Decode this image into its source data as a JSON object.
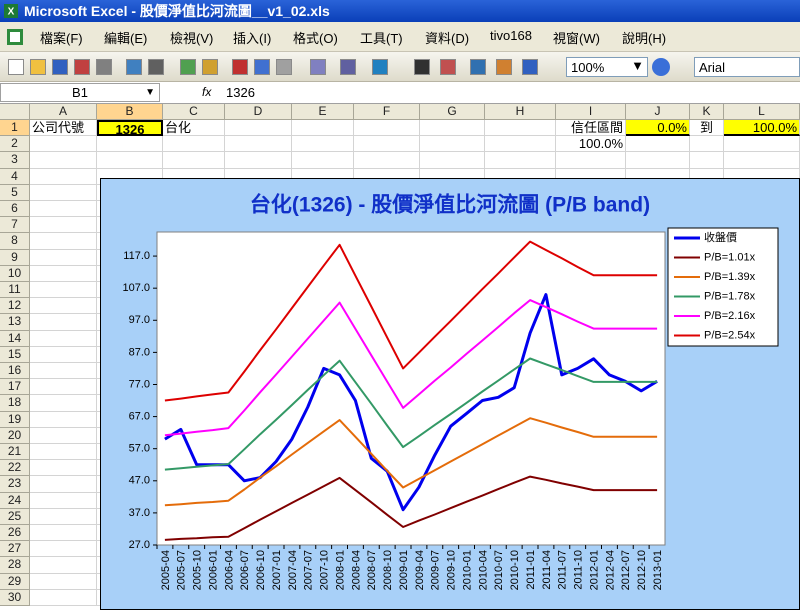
{
  "window": {
    "title": "Microsoft Excel - 股價淨值比河流圖__v1_02.xls"
  },
  "menu": [
    "檔案(F)",
    "編輯(E)",
    "檢視(V)",
    "插入(I)",
    "格式(O)",
    "工具(T)",
    "資料(D)",
    "tivo168",
    "視窗(W)",
    "說明(H)"
  ],
  "toolbar": {
    "zoom": "100%",
    "font": "Arial"
  },
  "formula_bar": {
    "name_box": "B1",
    "fx_label": "fx",
    "formula": "1326"
  },
  "sheet": {
    "columns": [
      "A",
      "B",
      "C",
      "D",
      "E",
      "F",
      "G",
      "H",
      "I",
      "J",
      "K",
      "L"
    ],
    "rows": [
      "1",
      "2",
      "3",
      "4",
      "5",
      "6",
      "7",
      "8",
      "9",
      "10",
      "11",
      "12",
      "13",
      "14",
      "15",
      "16",
      "17",
      "18",
      "19",
      "20",
      "21",
      "22",
      "23",
      "24",
      "25",
      "26",
      "27",
      "28",
      "29",
      "30"
    ],
    "cells": {
      "A1": "公司代號",
      "B1": "1326",
      "C1": "台化",
      "I1": "信任區間",
      "J1": "0.0%",
      "K1": "到",
      "L1": "100.0%",
      "I2": "100.0%"
    }
  },
  "chart_data": {
    "type": "line",
    "title": "台化(1326)  - 股價淨值比河流圖 (P/B band)",
    "categories": [
      "2005-04",
      "2005-07",
      "2005-10",
      "2006-01",
      "2006-04",
      "2006-07",
      "2006-10",
      "2007-01",
      "2007-04",
      "2007-07",
      "2007-10",
      "2008-01",
      "2008-04",
      "2008-07",
      "2008-10",
      "2009-01",
      "2009-04",
      "2009-07",
      "2009-10",
      "2010-01",
      "2010-04",
      "2010-07",
      "2010-10",
      "2011-01",
      "2011-04",
      "2011-07",
      "2011-10",
      "2012-01",
      "2012-04",
      "2012-07",
      "2012-10",
      "2013-01"
    ],
    "ylim": [
      27,
      124.5
    ],
    "yticks": [
      {
        "value": 27,
        "label": "27.0"
      },
      {
        "value": 37,
        "label": "37.0"
      },
      {
        "value": 47,
        "label": "47.0"
      },
      {
        "value": 57,
        "label": "57.0"
      },
      {
        "value": 67,
        "label": "67.0"
      },
      {
        "value": 77,
        "label": "77.0"
      },
      {
        "value": 87,
        "label": "87.0"
      },
      {
        "value": 97,
        "label": "97.0"
      },
      {
        "value": 107,
        "label": "107.0"
      },
      {
        "value": 117,
        "label": "117.0"
      }
    ],
    "legend": "right",
    "series": [
      {
        "name": "收盤價",
        "color": "#0000ee",
        "values": [
          60,
          63,
          52,
          52,
          52,
          47,
          48,
          53,
          60,
          70,
          82,
          80,
          72,
          54,
          50,
          38,
          45,
          55,
          64,
          68,
          72,
          73,
          76,
          93,
          105,
          80,
          82,
          85,
          80,
          78,
          75,
          78
        ]
      },
      {
        "name": "P/B=1.01x",
        "color": "#800000",
        "values": [
          28.6,
          28.9,
          29.1,
          29.4,
          29.6,
          32.2,
          34.9,
          37.5,
          40.1,
          42.7,
          45.3,
          47.9,
          44.1,
          40.3,
          36.4,
          32.6,
          34.6,
          36.5,
          38.5,
          40.5,
          42.4,
          44.4,
          46.4,
          48.3,
          47.3,
          46.2,
          45.2,
          44.1,
          44.1,
          44.1,
          44.1,
          44.1
        ]
      },
      {
        "name": "P/B=1.39x",
        "color": "#e46c0a",
        "values": [
          39.4,
          39.7,
          40.1,
          40.4,
          40.8,
          44.3,
          48,
          51.5,
          55.2,
          58.8,
          62.4,
          65.9,
          60.7,
          55.4,
          50.1,
          44.9,
          47.6,
          50.3,
          53,
          55.7,
          58.4,
          61.1,
          63.8,
          66.5,
          65.1,
          63.6,
          62.2,
          60.7,
          60.7,
          60.7,
          60.7,
          60.7
        ]
      },
      {
        "name": "P/B=1.78x",
        "color": "#339966",
        "values": [
          50.5,
          50.9,
          51.4,
          51.8,
          52.2,
          56.8,
          61.5,
          66,
          70.6,
          75.3,
          79.9,
          84.4,
          77.7,
          71,
          64.2,
          57.5,
          60.9,
          64.4,
          67.8,
          71.3,
          74.8,
          78.2,
          81.7,
          85.1,
          83.3,
          81.5,
          79.6,
          77.8,
          77.8,
          77.8,
          77.8,
          77.8
        ]
      },
      {
        "name": "P/B=2.16x",
        "color": "#ff00ff",
        "values": [
          61.2,
          61.7,
          62.3,
          62.8,
          63.4,
          68.9,
          74.6,
          80.1,
          85.7,
          91.3,
          96.9,
          102.5,
          94.3,
          86.1,
          77.9,
          69.7,
          73.9,
          78.2,
          82.3,
          86.6,
          90.7,
          94.9,
          99.2,
          103.3,
          101.1,
          98.9,
          96.6,
          94.4,
          94.4,
          94.4,
          94.4,
          94.4
        ]
      },
      {
        "name": "P/B=2.54x",
        "color": "#dd0000",
        "values": [
          72,
          72.6,
          73.3,
          73.9,
          74.5,
          81,
          87.7,
          94.2,
          100.8,
          107.4,
          114,
          120.5,
          110.9,
          101.3,
          91.6,
          82,
          86.9,
          91.9,
          96.8,
          101.8,
          106.7,
          111.6,
          116.6,
          121.5,
          118.9,
          116.3,
          113.6,
          111,
          111,
          111,
          111,
          111
        ]
      }
    ]
  }
}
